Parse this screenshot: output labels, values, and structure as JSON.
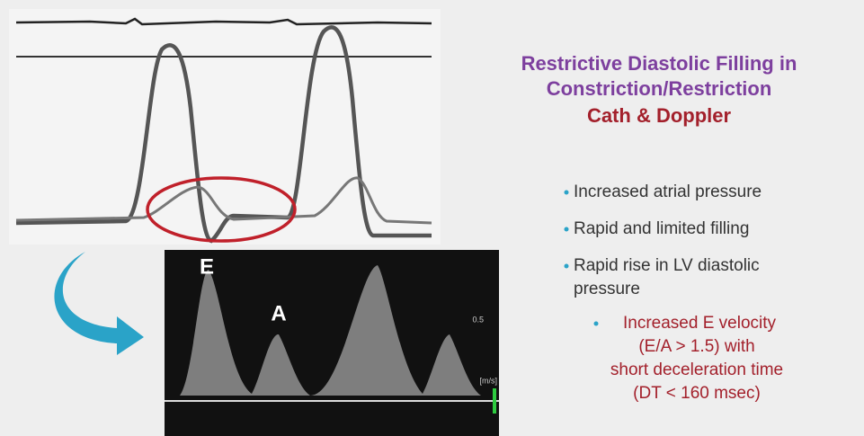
{
  "slide": {
    "title": [
      "Restrictive Diastolic Filling in",
      "Constriction/Restriction"
    ],
    "subtitle": "Cath & Doppler",
    "bullets": [
      [
        "Increased atrial pressure"
      ],
      [
        "Rapid and limited filling"
      ],
      [
        "Rapid rise in LV diastolic",
        "pressure"
      ]
    ],
    "highlight": [
      "Increased E velocity",
      "(E/A > 1.5)  with",
      "short deceleration time",
      "(DT < 160 msec)"
    ],
    "doppler": {
      "peak_labels": [
        "E",
        "A"
      ],
      "scale_label": "0.5",
      "unit": "[m/s]"
    }
  }
}
